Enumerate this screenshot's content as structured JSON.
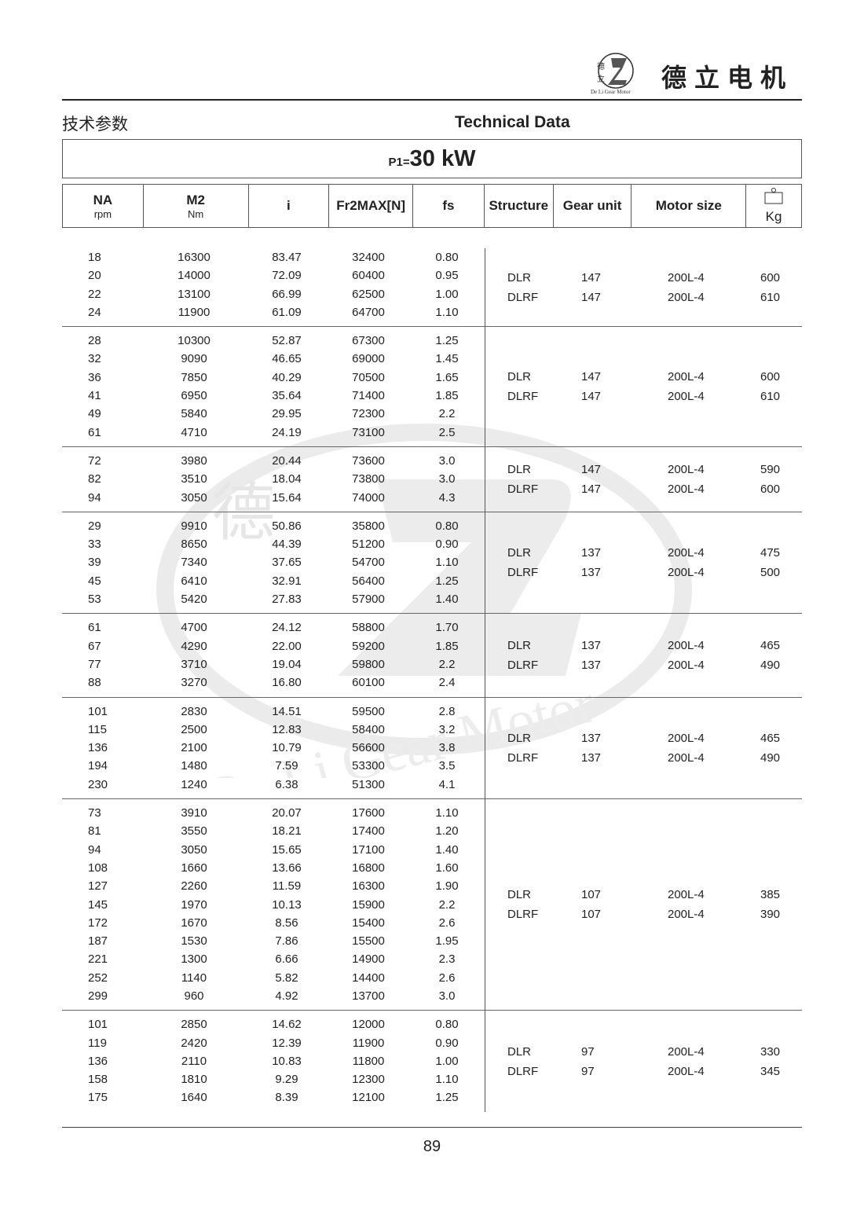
{
  "header": {
    "brand": "德立电机",
    "logo_text": "De Li Gear Motor",
    "logo_chars": "德立"
  },
  "titles": {
    "cn": "技术参数",
    "en": "Technical Data"
  },
  "power": {
    "prefix": "P1=",
    "value": "30 kW"
  },
  "columns": [
    {
      "main": "NA",
      "sub": "rpm"
    },
    {
      "main": "M2",
      "sub": "Nm"
    },
    {
      "main": "i",
      "sub": ""
    },
    {
      "main": "Fr2MAX[N]",
      "sub": ""
    },
    {
      "main": "fs",
      "sub": ""
    },
    {
      "main": "Structure",
      "sub": ""
    },
    {
      "main": "Gear unit",
      "sub": ""
    },
    {
      "main": "Motor size",
      "sub": ""
    },
    {
      "main": "Kg",
      "sub": "",
      "icon": "weight-icon"
    }
  ],
  "groups": [
    {
      "rows": [
        [
          "18",
          "16300",
          "83.47",
          "32400",
          "0.80"
        ],
        [
          "20",
          "14000",
          "72.09",
          "60400",
          "0.95"
        ],
        [
          "22",
          "13100",
          "66.99",
          "62500",
          "1.00"
        ],
        [
          "24",
          "11900",
          "61.09",
          "64700",
          "1.10"
        ]
      ],
      "specs": [
        [
          "DLR",
          "147",
          "200L-4",
          "600"
        ],
        [
          "DLRF",
          "147",
          "200L-4",
          "610"
        ]
      ]
    },
    {
      "rows": [
        [
          "28",
          "10300",
          "52.87",
          "67300",
          "1.25"
        ],
        [
          "32",
          "9090",
          "46.65",
          "69000",
          "1.45"
        ],
        [
          "36",
          "7850",
          "40.29",
          "70500",
          "1.65"
        ],
        [
          "41",
          "6950",
          "35.64",
          "71400",
          "1.85"
        ],
        [
          "49",
          "5840",
          "29.95",
          "72300",
          "2.2"
        ],
        [
          "61",
          "4710",
          "24.19",
          "73100",
          "2.5"
        ]
      ],
      "specs": [
        [
          "DLR",
          "147",
          "200L-4",
          "600"
        ],
        [
          "DLRF",
          "147",
          "200L-4",
          "610"
        ]
      ]
    },
    {
      "rows": [
        [
          "72",
          "3980",
          "20.44",
          "73600",
          "3.0"
        ],
        [
          "82",
          "3510",
          "18.04",
          "73800",
          "3.0"
        ],
        [
          "94",
          "3050",
          "15.64",
          "74000",
          "4.3"
        ]
      ],
      "specs": [
        [
          "DLR",
          "147",
          "200L-4",
          "590"
        ],
        [
          "DLRF",
          "147",
          "200L-4",
          "600"
        ]
      ]
    },
    {
      "rows": [
        [
          "29",
          "9910",
          "50.86",
          "35800",
          "0.80"
        ],
        [
          "33",
          "8650",
          "44.39",
          "51200",
          "0.90"
        ],
        [
          "39",
          "7340",
          "37.65",
          "54700",
          "1.10"
        ],
        [
          "45",
          "6410",
          "32.91",
          "56400",
          "1.25"
        ],
        [
          "53",
          "5420",
          "27.83",
          "57900",
          "1.40"
        ]
      ],
      "specs": [
        [
          "DLR",
          "137",
          "200L-4",
          "475"
        ],
        [
          "DLRF",
          "137",
          "200L-4",
          "500"
        ]
      ]
    },
    {
      "rows": [
        [
          "61",
          "4700",
          "24.12",
          "58800",
          "1.70"
        ],
        [
          "67",
          "4290",
          "22.00",
          "59200",
          "1.85"
        ],
        [
          "77",
          "3710",
          "19.04",
          "59800",
          "2.2"
        ],
        [
          "88",
          "3270",
          "16.80",
          "60100",
          "2.4"
        ]
      ],
      "specs": [
        [
          "DLR",
          "137",
          "200L-4",
          "465"
        ],
        [
          "DLRF",
          "137",
          "200L-4",
          "490"
        ]
      ]
    },
    {
      "rows": [
        [
          "101",
          "2830",
          "14.51",
          "59500",
          "2.8"
        ],
        [
          "115",
          "2500",
          "12.83",
          "58400",
          "3.2"
        ],
        [
          "136",
          "2100",
          "10.79",
          "56600",
          "3.8"
        ],
        [
          "194",
          "1480",
          "7.59",
          "53300",
          "3.5"
        ],
        [
          "230",
          "1240",
          "6.38",
          "51300",
          "4.1"
        ]
      ],
      "specs": [
        [
          "DLR",
          "137",
          "200L-4",
          "465"
        ],
        [
          "DLRF",
          "137",
          "200L-4",
          "490"
        ]
      ]
    },
    {
      "rows": [
        [
          "73",
          "3910",
          "20.07",
          "17600",
          "1.10"
        ],
        [
          "81",
          "3550",
          "18.21",
          "17400",
          "1.20"
        ],
        [
          "94",
          "3050",
          "15.65",
          "17100",
          "1.40"
        ],
        [
          "108",
          "1660",
          "13.66",
          "16800",
          "1.60"
        ],
        [
          "127",
          "2260",
          "11.59",
          "16300",
          "1.90"
        ],
        [
          "145",
          "1970",
          "10.13",
          "15900",
          "2.2"
        ],
        [
          "172",
          "1670",
          "8.56",
          "15400",
          "2.6"
        ],
        [
          "187",
          "1530",
          "7.86",
          "15500",
          "1.95"
        ],
        [
          "221",
          "1300",
          "6.66",
          "14900",
          "2.3"
        ],
        [
          "252",
          "1140",
          "5.82",
          "14400",
          "2.6"
        ],
        [
          "299",
          "960",
          "4.92",
          "13700",
          "3.0"
        ]
      ],
      "specs": [
        [
          "DLR",
          "107",
          "200L-4",
          "385"
        ],
        [
          "DLRF",
          "107",
          "200L-4",
          "390"
        ]
      ]
    },
    {
      "rows": [
        [
          "101",
          "2850",
          "14.62",
          "12000",
          "0.80"
        ],
        [
          "119",
          "2420",
          "12.39",
          "11900",
          "0.90"
        ],
        [
          "136",
          "2110",
          "10.83",
          "11800",
          "1.00"
        ],
        [
          "158",
          "1810",
          "9.29",
          "12300",
          "1.10"
        ],
        [
          "175",
          "1640",
          "8.39",
          "12100",
          "1.25"
        ]
      ],
      "specs": [
        [
          "DLR",
          "97",
          "200L-4",
          "330"
        ],
        [
          "DLRF",
          "97",
          "200L-4",
          "345"
        ]
      ]
    }
  ],
  "footer": {
    "page_number": "89"
  },
  "watermark": {
    "text": "De Li Gear Motor",
    "chars": "德立"
  }
}
